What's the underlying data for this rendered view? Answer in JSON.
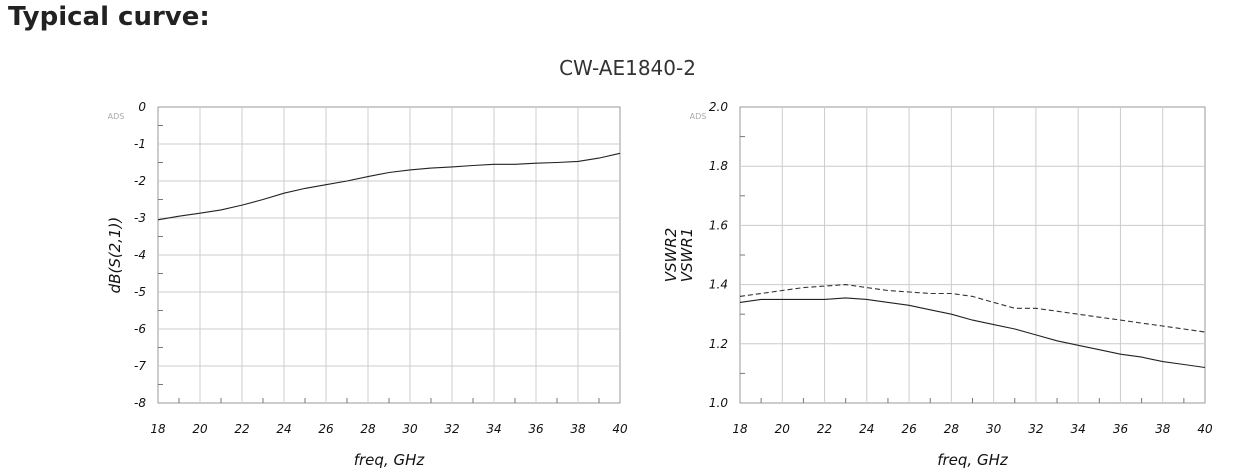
{
  "page": {
    "heading": "Typical curve:",
    "subtitle": "CW-AE1840-2"
  },
  "chart_data": [
    {
      "type": "line",
      "title": "",
      "brand_mark": "ADS",
      "xlabel": "freq, GHz",
      "ylabel": "dB(S(2,1))",
      "xlim": [
        18,
        40
      ],
      "ylim": [
        -8,
        0
      ],
      "x_ticks": [
        "18",
        "20",
        "22",
        "24",
        "26",
        "28",
        "30",
        "32",
        "34",
        "36",
        "38",
        "40"
      ],
      "y_ticks": [
        "0",
        "-1",
        "-2",
        "-3",
        "-4",
        "-5",
        "-6",
        "-7",
        "-8"
      ],
      "grid": true,
      "series": [
        {
          "name": "",
          "style": "solid",
          "color": "#222222",
          "x": [
            18,
            19,
            20,
            21,
            22,
            23,
            24,
            25,
            26,
            27,
            28,
            29,
            30,
            31,
            32,
            33,
            34,
            35,
            36,
            37,
            38,
            39,
            40
          ],
          "y": [
            -3.05,
            -2.95,
            -2.87,
            -2.78,
            -2.65,
            -2.5,
            -2.33,
            -2.2,
            -2.1,
            -2.0,
            -1.88,
            -1.77,
            -1.7,
            -1.65,
            -1.62,
            -1.58,
            -1.55,
            -1.55,
            -1.52,
            -1.5,
            -1.47,
            -1.38,
            -1.25
          ]
        }
      ]
    },
    {
      "type": "line",
      "title": "",
      "brand_mark": "ADS",
      "xlabel": "freq, GHz",
      "ylabel": "VSWR1",
      "ylabel2": "VSWR2",
      "xlim": [
        18,
        40
      ],
      "ylim": [
        1.0,
        2.0
      ],
      "x_ticks": [
        "18",
        "20",
        "22",
        "24",
        "26",
        "28",
        "30",
        "32",
        "34",
        "36",
        "38",
        "40"
      ],
      "y_ticks": [
        "2.0",
        "1.8",
        "1.6",
        "1.4",
        "1.2",
        "1.0"
      ],
      "grid": true,
      "series": [
        {
          "name": "",
          "style": "dashed",
          "color": "#333333",
          "x": [
            18,
            19,
            20,
            21,
            22,
            23,
            24,
            25,
            26,
            27,
            28,
            29,
            30,
            31,
            32,
            33,
            34,
            35,
            36,
            37,
            38,
            39,
            40
          ],
          "y": [
            1.36,
            1.37,
            1.38,
            1.39,
            1.395,
            1.4,
            1.39,
            1.38,
            1.375,
            1.37,
            1.37,
            1.36,
            1.34,
            1.32,
            1.32,
            1.31,
            1.3,
            1.29,
            1.28,
            1.27,
            1.26,
            1.25,
            1.24
          ]
        },
        {
          "name": "",
          "style": "solid",
          "color": "#222222",
          "x": [
            18,
            19,
            20,
            21,
            22,
            23,
            24,
            25,
            26,
            27,
            28,
            29,
            30,
            31,
            32,
            33,
            34,
            35,
            36,
            37,
            38,
            39,
            40
          ],
          "y": [
            1.34,
            1.35,
            1.35,
            1.35,
            1.35,
            1.355,
            1.35,
            1.34,
            1.33,
            1.315,
            1.3,
            1.28,
            1.265,
            1.25,
            1.23,
            1.21,
            1.195,
            1.18,
            1.165,
            1.155,
            1.14,
            1.13,
            1.12
          ]
        }
      ]
    }
  ]
}
